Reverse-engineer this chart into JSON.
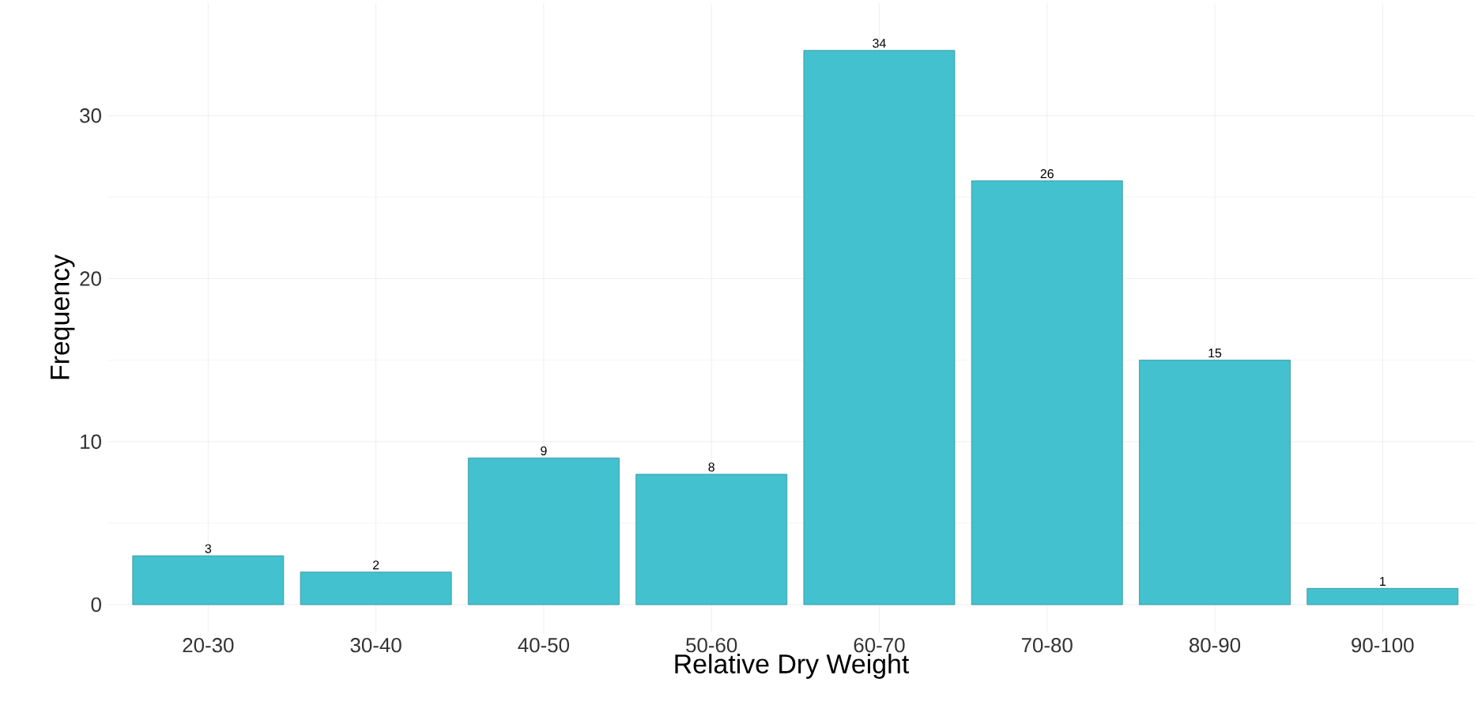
{
  "chart_data": {
    "type": "bar",
    "xlabel": "Relative Dry Weight",
    "ylabel": "Frequency",
    "categories": [
      "20-30",
      "30-40",
      "40-50",
      "50-60",
      "60-70",
      "70-80",
      "80-90",
      "90-100"
    ],
    "values": [
      3,
      2,
      9,
      8,
      34,
      26,
      15,
      1
    ],
    "color": "#43c1cf",
    "ylim": [
      -1.7,
      36.9
    ],
    "yticks": [
      0,
      10,
      20,
      30
    ],
    "grid": true,
    "data_labels": true
  }
}
